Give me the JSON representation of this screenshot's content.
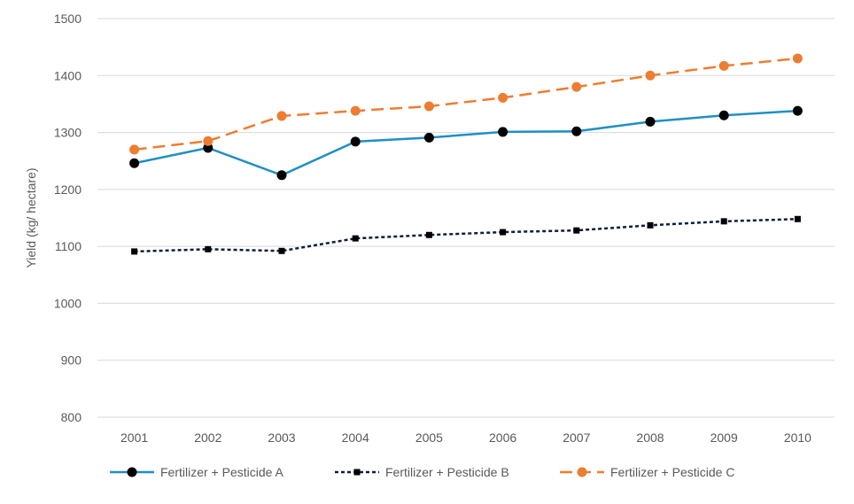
{
  "chart_data": {
    "type": "line",
    "title": "",
    "xlabel": "",
    "ylabel": "Yield (kg/ hectare)",
    "ylim": [
      800,
      1500
    ],
    "yticks": [
      800,
      900,
      1000,
      1100,
      1200,
      1300,
      1400,
      1500
    ],
    "categories": [
      "2001",
      "2002",
      "2003",
      "2004",
      "2005",
      "2006",
      "2007",
      "2008",
      "2009",
      "2010"
    ],
    "grid": true,
    "legend_position": "bottom",
    "series": [
      {
        "name": "Fertilizer + Pesticide A",
        "color": "#1f8fc5",
        "marker": "circle",
        "dash": "solid",
        "values": [
          1246,
          1273,
          1225,
          1284,
          1291,
          1301,
          1302,
          1319,
          1330,
          1338
        ]
      },
      {
        "name": "Fertilizer + Pesticide B",
        "color": "#0d1f3c",
        "marker": "square",
        "dash": "dotted",
        "values": [
          1091,
          1095,
          1092,
          1114,
          1120,
          1125,
          1128,
          1137,
          1144,
          1148
        ]
      },
      {
        "name": "Fertilizer + Pesticide C",
        "color": "#ed7d31",
        "marker": "circle",
        "dash": "dashed",
        "values": [
          1270,
          1285,
          1329,
          1338,
          1346,
          1361,
          1380,
          1400,
          1417,
          1430
        ]
      }
    ]
  }
}
